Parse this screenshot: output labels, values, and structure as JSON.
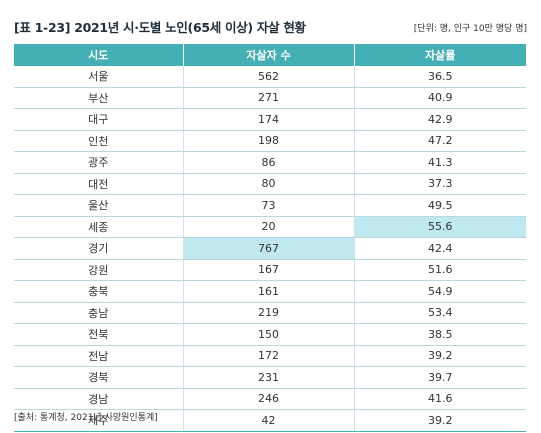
{
  "title": "[표 1-23] 2021년 시·도별 노인(65세 이상) 자살 현황",
  "unit": "[단위: 명, 인구 10만 명당 명]",
  "columns": [
    "시도",
    "자살자 수",
    "자살률"
  ],
  "rows": [
    {
      "region": "서울",
      "count": "562",
      "rate": "36.5"
    },
    {
      "region": "부산",
      "count": "271",
      "rate": "40.9"
    },
    {
      "region": "대구",
      "count": "174",
      "rate": "42.9"
    },
    {
      "region": "인천",
      "count": "198",
      "rate": "47.2"
    },
    {
      "region": "광주",
      "count": "86",
      "rate": "41.3"
    },
    {
      "region": "대전",
      "count": "80",
      "rate": "37.3"
    },
    {
      "region": "울산",
      "count": "73",
      "rate": "49.5"
    },
    {
      "region": "세종",
      "count": "20",
      "rate": "55.6",
      "highlight": "rate"
    },
    {
      "region": "경기",
      "count": "767",
      "rate": "42.4",
      "highlight": "count"
    },
    {
      "region": "강원",
      "count": "167",
      "rate": "51.6"
    },
    {
      "region": "충북",
      "count": "161",
      "rate": "54.9"
    },
    {
      "region": "충남",
      "count": "219",
      "rate": "53.4"
    },
    {
      "region": "전북",
      "count": "150",
      "rate": "38.5"
    },
    {
      "region": "전남",
      "count": "172",
      "rate": "39.2"
    },
    {
      "region": "경북",
      "count": "231",
      "rate": "39.7"
    },
    {
      "region": "경남",
      "count": "246",
      "rate": "41.6"
    },
    {
      "region": "제주",
      "count": "42",
      "rate": "39.2"
    }
  ],
  "source": "[출처: 통계청, 2021년 사망원인통계]",
  "colors": {
    "header": "#44afb4",
    "highlight": "#bfe9ee"
  }
}
